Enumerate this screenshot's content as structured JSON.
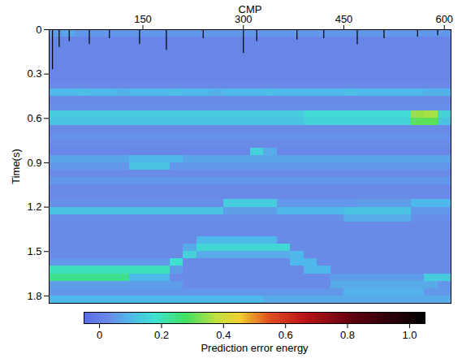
{
  "chart_data": {
    "type": "heatmap",
    "x_label": "CMP",
    "y_label": "Time(s)",
    "xlim": [
      10,
      610
    ],
    "xticks": [
      150,
      300,
      450,
      600
    ],
    "ylim": [
      0,
      1.85
    ],
    "yticks": [
      0,
      0.3,
      0.6,
      0.9,
      1.2,
      1.5,
      1.8
    ],
    "x_edges": [
      10,
      30,
      50,
      70,
      90,
      110,
      130,
      150,
      170,
      190,
      210,
      230,
      250,
      270,
      290,
      310,
      330,
      350,
      370,
      390,
      410,
      430,
      450,
      470,
      490,
      510,
      530,
      550,
      570,
      590,
      610
    ],
    "y_edges": [
      0,
      0.05,
      0.1,
      0.15,
      0.2,
      0.25,
      0.3,
      0.35,
      0.4,
      0.45,
      0.5,
      0.55,
      0.6,
      0.65,
      0.7,
      0.75,
      0.8,
      0.85,
      0.9,
      0.95,
      1,
      1.05,
      1.1,
      1.15,
      1.2,
      1.25,
      1.3,
      1.35,
      1.4,
      1.45,
      1.5,
      1.55,
      1.6,
      1.65,
      1.7,
      1.75,
      1.8,
      1.85
    ],
    "values": [
      [
        0.06,
        0.07,
        0.05,
        0.05,
        0.05,
        0.05,
        0.05,
        0.05,
        0.05,
        0.05,
        0.05,
        0.05,
        0.05,
        0.05,
        0.05,
        0.05,
        0.05,
        0.05,
        0.05,
        0.05,
        0.05,
        0.05,
        0.05,
        0.05,
        0.05,
        0.05,
        0.05,
        0.05,
        0.05,
        0.05
      ],
      [
        0.02,
        0.02,
        0.02,
        0.02,
        0.02,
        0.02,
        0.02,
        0.02,
        0.02,
        0.02,
        0.02,
        0.02,
        0.02,
        0.02,
        0.02,
        0.02,
        0.02,
        0.02,
        0.02,
        0.02,
        0.02,
        0.02,
        0.02,
        0.02,
        0.02,
        0.02,
        0.02,
        0.02,
        0.02,
        0.02
      ],
      [
        0.02,
        0.02,
        0.02,
        0.02,
        0.02,
        0.02,
        0.02,
        0.02,
        0.02,
        0.02,
        0.02,
        0.02,
        0.02,
        0.02,
        0.02,
        0.02,
        0.02,
        0.02,
        0.02,
        0.02,
        0.02,
        0.02,
        0.02,
        0.02,
        0.02,
        0.02,
        0.02,
        0.02,
        0.02,
        0.02
      ],
      [
        0.02,
        0.02,
        0.02,
        0.02,
        0.02,
        0.02,
        0.02,
        0.02,
        0.02,
        0.02,
        0.02,
        0.02,
        0.02,
        0.02,
        0.02,
        0.02,
        0.02,
        0.02,
        0.02,
        0.02,
        0.02,
        0.02,
        0.02,
        0.02,
        0.02,
        0.02,
        0.02,
        0.02,
        0.02,
        0.02
      ],
      [
        0.02,
        0.02,
        0.02,
        0.02,
        0.02,
        0.02,
        0.02,
        0.02,
        0.02,
        0.02,
        0.02,
        0.02,
        0.02,
        0.02,
        0.02,
        0.02,
        0.02,
        0.02,
        0.02,
        0.02,
        0.02,
        0.02,
        0.02,
        0.02,
        0.02,
        0.02,
        0.02,
        0.02,
        0.02,
        0.02
      ],
      [
        0.02,
        0.02,
        0.02,
        0.02,
        0.02,
        0.02,
        0.02,
        0.02,
        0.02,
        0.02,
        0.02,
        0.02,
        0.02,
        0.02,
        0.02,
        0.02,
        0.02,
        0.02,
        0.02,
        0.02,
        0.02,
        0.02,
        0.02,
        0.02,
        0.02,
        0.02,
        0.02,
        0.02,
        0.02,
        0.02
      ],
      [
        0.02,
        0.02,
        0.02,
        0.02,
        0.02,
        0.02,
        0.02,
        0.02,
        0.02,
        0.02,
        0.02,
        0.02,
        0.02,
        0.02,
        0.02,
        0.02,
        0.02,
        0.02,
        0.02,
        0.02,
        0.02,
        0.02,
        0.02,
        0.02,
        0.02,
        0.02,
        0.02,
        0.02,
        0.02,
        0.02
      ],
      [
        0.03,
        0.03,
        0.03,
        0.03,
        0.03,
        0.03,
        0.03,
        0.03,
        0.03,
        0.03,
        0.03,
        0.03,
        0.03,
        0.03,
        0.03,
        0.03,
        0.03,
        0.03,
        0.03,
        0.03,
        0.03,
        0.03,
        0.03,
        0.03,
        0.03,
        0.03,
        0.03,
        0.03,
        0.03,
        0.03
      ],
      [
        0.1,
        0.1,
        0.11,
        0.1,
        0.1,
        0.09,
        0.1,
        0.1,
        0.1,
        0.11,
        0.1,
        0.1,
        0.09,
        0.1,
        0.1,
        0.1,
        0.11,
        0.1,
        0.1,
        0.1,
        0.1,
        0.1,
        0.11,
        0.1,
        0.1,
        0.1,
        0.1,
        0.1,
        0.09,
        0.09
      ],
      [
        0.03,
        0.03,
        0.03,
        0.03,
        0.03,
        0.03,
        0.03,
        0.03,
        0.03,
        0.03,
        0.03,
        0.03,
        0.03,
        0.03,
        0.03,
        0.03,
        0.03,
        0.03,
        0.03,
        0.03,
        0.03,
        0.03,
        0.03,
        0.03,
        0.03,
        0.03,
        0.03,
        0.03,
        0.03,
        0.03
      ],
      [
        0.04,
        0.04,
        0.04,
        0.04,
        0.04,
        0.04,
        0.04,
        0.04,
        0.04,
        0.04,
        0.04,
        0.04,
        0.04,
        0.04,
        0.04,
        0.04,
        0.04,
        0.04,
        0.04,
        0.04,
        0.04,
        0.04,
        0.04,
        0.04,
        0.04,
        0.04,
        0.04,
        0.04,
        0.04,
        0.04
      ],
      [
        0.14,
        0.14,
        0.14,
        0.14,
        0.14,
        0.14,
        0.14,
        0.14,
        0.14,
        0.14,
        0.14,
        0.14,
        0.14,
        0.14,
        0.14,
        0.14,
        0.14,
        0.14,
        0.14,
        0.17,
        0.17,
        0.17,
        0.17,
        0.17,
        0.17,
        0.17,
        0.17,
        0.35,
        0.36,
        0.15
      ],
      [
        0.12,
        0.12,
        0.12,
        0.12,
        0.12,
        0.12,
        0.12,
        0.12,
        0.12,
        0.12,
        0.12,
        0.12,
        0.12,
        0.12,
        0.12,
        0.12,
        0.12,
        0.12,
        0.12,
        0.15,
        0.15,
        0.15,
        0.15,
        0.15,
        0.15,
        0.15,
        0.15,
        0.3,
        0.3,
        0.12
      ],
      [
        0.03,
        0.03,
        0.03,
        0.03,
        0.03,
        0.03,
        0.03,
        0.03,
        0.03,
        0.03,
        0.03,
        0.03,
        0.03,
        0.03,
        0.03,
        0.03,
        0.03,
        0.03,
        0.03,
        0.03,
        0.03,
        0.03,
        0.03,
        0.03,
        0.03,
        0.03,
        0.03,
        0.03,
        0.03,
        0.03
      ],
      [
        0.04,
        0.04,
        0.04,
        0.04,
        0.04,
        0.04,
        0.04,
        0.04,
        0.04,
        0.04,
        0.04,
        0.04,
        0.04,
        0.04,
        0.04,
        0.04,
        0.04,
        0.04,
        0.04,
        0.04,
        0.04,
        0.04,
        0.04,
        0.04,
        0.04,
        0.04,
        0.04,
        0.04,
        0.04,
        0.04
      ],
      [
        0.03,
        0.03,
        0.03,
        0.03,
        0.03,
        0.03,
        0.03,
        0.03,
        0.03,
        0.03,
        0.03,
        0.03,
        0.03,
        0.03,
        0.03,
        0.03,
        0.03,
        0.03,
        0.03,
        0.03,
        0.03,
        0.03,
        0.03,
        0.03,
        0.03,
        0.03,
        0.03,
        0.03,
        0.03,
        0.03
      ],
      [
        0.02,
        0.02,
        0.02,
        0.02,
        0.02,
        0.02,
        0.02,
        0.02,
        0.02,
        0.02,
        0.02,
        0.02,
        0.02,
        0.02,
        0.02,
        0.15,
        0.08,
        0.02,
        0.02,
        0.02,
        0.02,
        0.02,
        0.02,
        0.02,
        0.02,
        0.02,
        0.02,
        0.02,
        0.02,
        0.02
      ],
      [
        0.07,
        0.07,
        0.07,
        0.07,
        0.07,
        0.07,
        0.1,
        0.1,
        0.1,
        0.1,
        0.07,
        0.07,
        0.07,
        0.07,
        0.07,
        0.07,
        0.07,
        0.07,
        0.07,
        0.07,
        0.07,
        0.07,
        0.07,
        0.07,
        0.07,
        0.07,
        0.07,
        0.07,
        0.07,
        0.07
      ],
      [
        0.05,
        0.05,
        0.05,
        0.05,
        0.05,
        0.05,
        0.12,
        0.12,
        0.12,
        0.05,
        0.05,
        0.05,
        0.05,
        0.05,
        0.05,
        0.05,
        0.05,
        0.05,
        0.05,
        0.05,
        0.05,
        0.05,
        0.05,
        0.05,
        0.05,
        0.05,
        0.05,
        0.05,
        0.05,
        0.05
      ],
      [
        0.03,
        0.03,
        0.03,
        0.03,
        0.03,
        0.03,
        0.03,
        0.03,
        0.03,
        0.03,
        0.03,
        0.03,
        0.03,
        0.03,
        0.03,
        0.03,
        0.03,
        0.03,
        0.03,
        0.03,
        0.03,
        0.03,
        0.03,
        0.03,
        0.03,
        0.03,
        0.03,
        0.03,
        0.03,
        0.03
      ],
      [
        0.05,
        0.05,
        0.05,
        0.05,
        0.05,
        0.05,
        0.05,
        0.05,
        0.05,
        0.05,
        0.05,
        0.05,
        0.05,
        0.05,
        0.05,
        0.05,
        0.05,
        0.05,
        0.05,
        0.05,
        0.05,
        0.05,
        0.05,
        0.05,
        0.05,
        0.05,
        0.05,
        0.05,
        0.05,
        0.05
      ],
      [
        0.03,
        0.03,
        0.03,
        0.03,
        0.03,
        0.03,
        0.03,
        0.03,
        0.03,
        0.03,
        0.03,
        0.03,
        0.03,
        0.03,
        0.03,
        0.03,
        0.03,
        0.03,
        0.03,
        0.03,
        0.03,
        0.03,
        0.03,
        0.03,
        0.03,
        0.03,
        0.03,
        0.03,
        0.03,
        0.03
      ],
      [
        0.03,
        0.03,
        0.03,
        0.03,
        0.03,
        0.03,
        0.03,
        0.03,
        0.03,
        0.03,
        0.03,
        0.03,
        0.03,
        0.03,
        0.03,
        0.03,
        0.03,
        0.03,
        0.03,
        0.03,
        0.03,
        0.03,
        0.03,
        0.03,
        0.03,
        0.03,
        0.03,
        0.03,
        0.03,
        0.03
      ],
      [
        0.04,
        0.04,
        0.04,
        0.04,
        0.04,
        0.04,
        0.04,
        0.04,
        0.04,
        0.04,
        0.04,
        0.04,
        0.04,
        0.14,
        0.14,
        0.14,
        0.14,
        0.05,
        0.05,
        0.05,
        0.05,
        0.05,
        0.05,
        0.06,
        0.06,
        0.06,
        0.06,
        0.1,
        0.1,
        0.1
      ],
      [
        0.12,
        0.12,
        0.12,
        0.12,
        0.12,
        0.12,
        0.12,
        0.12,
        0.12,
        0.12,
        0.12,
        0.12,
        0.12,
        0.06,
        0.06,
        0.06,
        0.06,
        0.1,
        0.1,
        0.1,
        0.1,
        0.1,
        0.12,
        0.12,
        0.12,
        0.12,
        0.12,
        0.05,
        0.05,
        0.05
      ],
      [
        0.04,
        0.04,
        0.04,
        0.04,
        0.04,
        0.04,
        0.04,
        0.04,
        0.04,
        0.04,
        0.04,
        0.04,
        0.04,
        0.04,
        0.04,
        0.04,
        0.04,
        0.04,
        0.04,
        0.04,
        0.04,
        0.04,
        0.08,
        0.08,
        0.08,
        0.08,
        0.08,
        0.04,
        0.04,
        0.04
      ],
      [
        0.03,
        0.03,
        0.03,
        0.03,
        0.03,
        0.03,
        0.03,
        0.03,
        0.03,
        0.03,
        0.03,
        0.03,
        0.03,
        0.03,
        0.03,
        0.03,
        0.03,
        0.03,
        0.03,
        0.03,
        0.03,
        0.03,
        0.03,
        0.03,
        0.03,
        0.03,
        0.03,
        0.03,
        0.03,
        0.03
      ],
      [
        0.03,
        0.03,
        0.03,
        0.03,
        0.03,
        0.03,
        0.03,
        0.03,
        0.03,
        0.03,
        0.03,
        0.03,
        0.03,
        0.03,
        0.03,
        0.03,
        0.03,
        0.03,
        0.03,
        0.03,
        0.03,
        0.03,
        0.03,
        0.03,
        0.03,
        0.03,
        0.03,
        0.03,
        0.03,
        0.03
      ],
      [
        0.03,
        0.03,
        0.03,
        0.03,
        0.03,
        0.03,
        0.03,
        0.03,
        0.03,
        0.03,
        0.03,
        0.1,
        0.1,
        0.1,
        0.1,
        0.1,
        0.1,
        0.03,
        0.03,
        0.03,
        0.03,
        0.03,
        0.03,
        0.03,
        0.03,
        0.03,
        0.03,
        0.03,
        0.03,
        0.03
      ],
      [
        0.03,
        0.03,
        0.03,
        0.03,
        0.03,
        0.03,
        0.03,
        0.03,
        0.03,
        0.03,
        0.08,
        0.16,
        0.16,
        0.16,
        0.16,
        0.16,
        0.16,
        0.16,
        0.03,
        0.03,
        0.03,
        0.03,
        0.03,
        0.03,
        0.03,
        0.03,
        0.03,
        0.03,
        0.03,
        0.03
      ],
      [
        0.03,
        0.03,
        0.03,
        0.03,
        0.03,
        0.03,
        0.03,
        0.03,
        0.03,
        0.03,
        0.15,
        0.08,
        0.08,
        0.08,
        0.08,
        0.08,
        0.08,
        0.08,
        0.1,
        0.03,
        0.03,
        0.03,
        0.03,
        0.03,
        0.03,
        0.03,
        0.03,
        0.03,
        0.03,
        0.03
      ],
      [
        0.05,
        0.05,
        0.05,
        0.05,
        0.05,
        0.05,
        0.05,
        0.05,
        0.05,
        0.18,
        0.03,
        0.03,
        0.03,
        0.03,
        0.03,
        0.03,
        0.03,
        0.03,
        0.1,
        0.1,
        0.03,
        0.03,
        0.03,
        0.03,
        0.03,
        0.03,
        0.03,
        0.03,
        0.03,
        0.03
      ],
      [
        0.2,
        0.2,
        0.2,
        0.2,
        0.2,
        0.2,
        0.2,
        0.2,
        0.2,
        0.06,
        0.03,
        0.03,
        0.03,
        0.03,
        0.03,
        0.03,
        0.03,
        0.03,
        0.03,
        0.1,
        0.1,
        0.03,
        0.03,
        0.03,
        0.03,
        0.03,
        0.03,
        0.03,
        0.03,
        0.03
      ],
      [
        0.24,
        0.24,
        0.24,
        0.24,
        0.24,
        0.24,
        0.1,
        0.1,
        0.1,
        0.03,
        0.03,
        0.03,
        0.03,
        0.03,
        0.03,
        0.03,
        0.03,
        0.03,
        0.03,
        0.03,
        0.03,
        0.06,
        0.06,
        0.06,
        0.06,
        0.06,
        0.06,
        0.06,
        0.14,
        0.14
      ],
      [
        0.06,
        0.06,
        0.06,
        0.06,
        0.06,
        0.06,
        0.06,
        0.06,
        0.06,
        0.06,
        0.03,
        0.03,
        0.03,
        0.03,
        0.03,
        0.03,
        0.03,
        0.03,
        0.03,
        0.03,
        0.03,
        0.08,
        0.08,
        0.08,
        0.08,
        0.08,
        0.08,
        0.08,
        0.08,
        0.05
      ],
      [
        0.05,
        0.05,
        0.05,
        0.05,
        0.05,
        0.05,
        0.05,
        0.05,
        0.05,
        0.05,
        0.05,
        0.05,
        0.05,
        0.05,
        0.05,
        0.05,
        0.05,
        0.05,
        0.05,
        0.05,
        0.05,
        0.05,
        0.09,
        0.09,
        0.09,
        0.09,
        0.09,
        0.09,
        0.05,
        0.05
      ],
      [
        0.1,
        0.1,
        0.1,
        0.1,
        0.1,
        0.1,
        0.1,
        0.1,
        0.1,
        0.1,
        0.1,
        0.1,
        0.1,
        0.1,
        0.1,
        0.1,
        0.08,
        0.08,
        0.08,
        0.08,
        0.08,
        0.08,
        0.08,
        0.08,
        0.08,
        0.08,
        0.08,
        0.08,
        0.08,
        0.08
      ]
    ],
    "spike_cmp": [
      15,
      25,
      40,
      70,
      100,
      145,
      185,
      240,
      300,
      320,
      380,
      420,
      470,
      510,
      560,
      590
    ],
    "spike_time": [
      0.27,
      0.12,
      0.08,
      0.1,
      0.06,
      0.1,
      0.14,
      0.06,
      0.16,
      0.08,
      0.07,
      0.06,
      0.1,
      0.06,
      0.05,
      0.04
    ],
    "colorbar": {
      "label": "Prediction error energy",
      "range": [
        -0.05,
        1.05
      ],
      "ticks": [
        0,
        0.2,
        0.4,
        0.6,
        0.8,
        {
          "value": 1,
          "label": "1.0"
        }
      ]
    }
  }
}
